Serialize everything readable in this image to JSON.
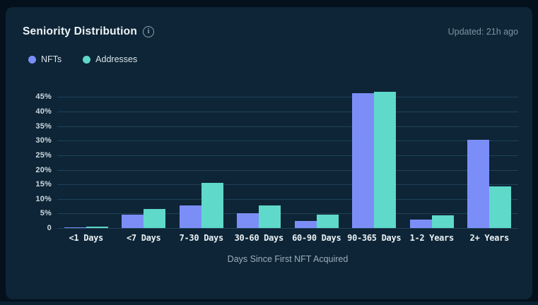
{
  "card": {
    "title": "Seniority Distribution",
    "info_glyph": "i",
    "updated": "Updated: 21h ago"
  },
  "chart_data": {
    "type": "bar",
    "title": "Seniority Distribution",
    "categories": [
      "<1 Days",
      "<7 Days",
      "7-30 Days",
      "30-60 Days",
      "60-90 Days",
      "90-365 Days",
      "1-2 Years",
      "2+ Years"
    ],
    "series": [
      {
        "name": "NFTs",
        "color": "#7b8ef8",
        "values": [
          0.3,
          4.7,
          7.7,
          5.2,
          2.4,
          46.3,
          3.0,
          30.4
        ]
      },
      {
        "name": "Addresses",
        "color": "#5fd9c9",
        "values": [
          0.5,
          6.6,
          15.5,
          7.8,
          4.5,
          46.8,
          4.3,
          14.2
        ]
      }
    ],
    "xlabel": "Days Since First NFT Acquired",
    "ylabel": "",
    "ylim": [
      0,
      49
    ],
    "yticks": [
      0,
      5,
      10,
      15,
      20,
      25,
      30,
      35,
      40,
      45
    ],
    "ytick_labels": [
      "0",
      "5%",
      "10%",
      "15%",
      "20%",
      "25%",
      "30%",
      "35%",
      "40%",
      "45%"
    ],
    "grid": true,
    "legend_position": "top-left"
  },
  "colors": {
    "outer_bg": "#04101b",
    "card_bg": "#0d2536",
    "gridline": "#21415a",
    "nfts": "#7b8ef8",
    "addresses": "#5fd9c9"
  }
}
